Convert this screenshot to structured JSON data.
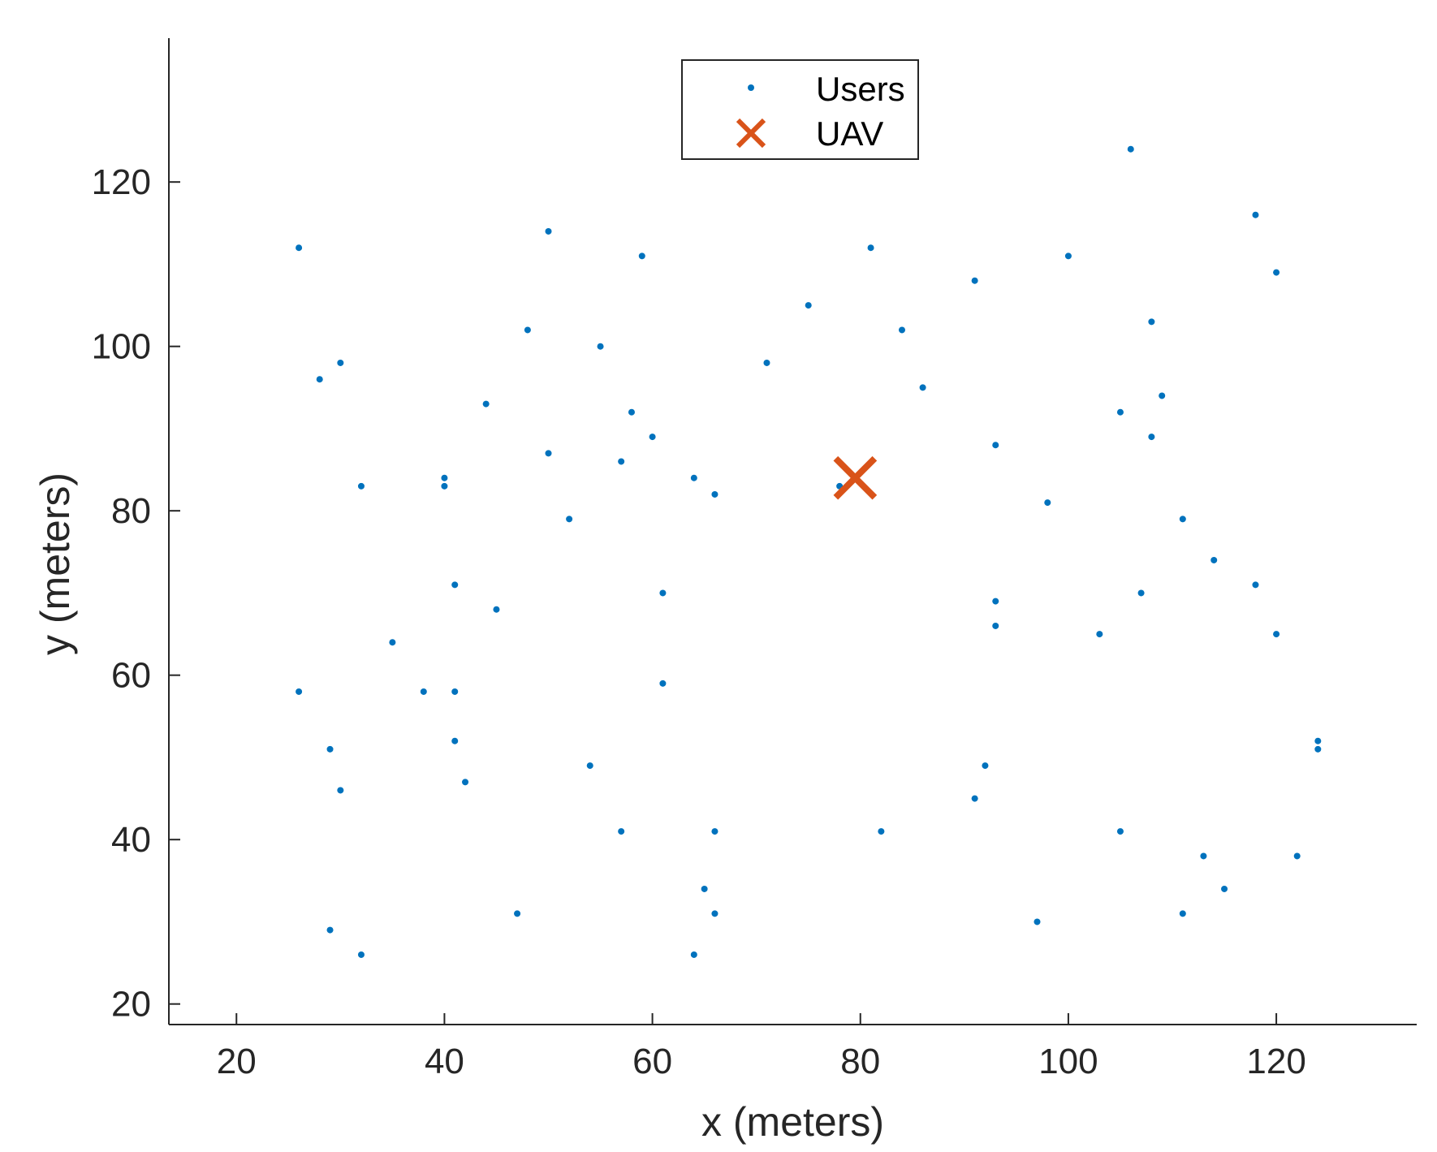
{
  "chart_data": {
    "type": "scatter",
    "title": "",
    "xlabel": "x (meters)",
    "ylabel": "y (meters)",
    "xlim": [
      13.5,
      133.5
    ],
    "ylim": [
      17.5,
      137.5
    ],
    "xticks": [
      20,
      40,
      60,
      80,
      100,
      120
    ],
    "yticks": [
      20,
      40,
      60,
      80,
      100,
      120
    ],
    "grid": false,
    "legend_position": "top-center",
    "series": [
      {
        "name": "Users",
        "marker": "dot",
        "color": "#0072BD",
        "points": [
          [
            26,
            112
          ],
          [
            28,
            96
          ],
          [
            30,
            98
          ],
          [
            32,
            83
          ],
          [
            26,
            58
          ],
          [
            29,
            51
          ],
          [
            30,
            46
          ],
          [
            29,
            29
          ],
          [
            32,
            26
          ],
          [
            35,
            64
          ],
          [
            38,
            58
          ],
          [
            40,
            84
          ],
          [
            40,
            83
          ],
          [
            41,
            71
          ],
          [
            41,
            58
          ],
          [
            41,
            52
          ],
          [
            42,
            47
          ],
          [
            44,
            93
          ],
          [
            45,
            68
          ],
          [
            47,
            31
          ],
          [
            48,
            102
          ],
          [
            50,
            114
          ],
          [
            50,
            87
          ],
          [
            52,
            79
          ],
          [
            54,
            49
          ],
          [
            55,
            100
          ],
          [
            57,
            86
          ],
          [
            57,
            41
          ],
          [
            58,
            92
          ],
          [
            59,
            111
          ],
          [
            60,
            89
          ],
          [
            61,
            70
          ],
          [
            61,
            59
          ],
          [
            64,
            84
          ],
          [
            64,
            26
          ],
          [
            65,
            34
          ],
          [
            66,
            82
          ],
          [
            66,
            41
          ],
          [
            66,
            31
          ],
          [
            71,
            98
          ],
          [
            75,
            105
          ],
          [
            78,
            83
          ],
          [
            81,
            112
          ],
          [
            82,
            41
          ],
          [
            84,
            102
          ],
          [
            86,
            95
          ],
          [
            91,
            108
          ],
          [
            91,
            45
          ],
          [
            92,
            49
          ],
          [
            93,
            88
          ],
          [
            93,
            69
          ],
          [
            93,
            66
          ],
          [
            97,
            30
          ],
          [
            98,
            81
          ],
          [
            100,
            111
          ],
          [
            103,
            65
          ],
          [
            105,
            92
          ],
          [
            105,
            41
          ],
          [
            106,
            124
          ],
          [
            107,
            70
          ],
          [
            108,
            103
          ],
          [
            108,
            89
          ],
          [
            109,
            94
          ],
          [
            111,
            79
          ],
          [
            111,
            31
          ],
          [
            113,
            38
          ],
          [
            114,
            74
          ],
          [
            115,
            34
          ],
          [
            118,
            116
          ],
          [
            118,
            71
          ],
          [
            120,
            109
          ],
          [
            120,
            65
          ],
          [
            122,
            38
          ],
          [
            124,
            52
          ],
          [
            124,
            51
          ]
        ]
      },
      {
        "name": "UAV",
        "marker": "x",
        "color": "#D95319",
        "points": [
          [
            79.5,
            84
          ]
        ]
      }
    ]
  }
}
